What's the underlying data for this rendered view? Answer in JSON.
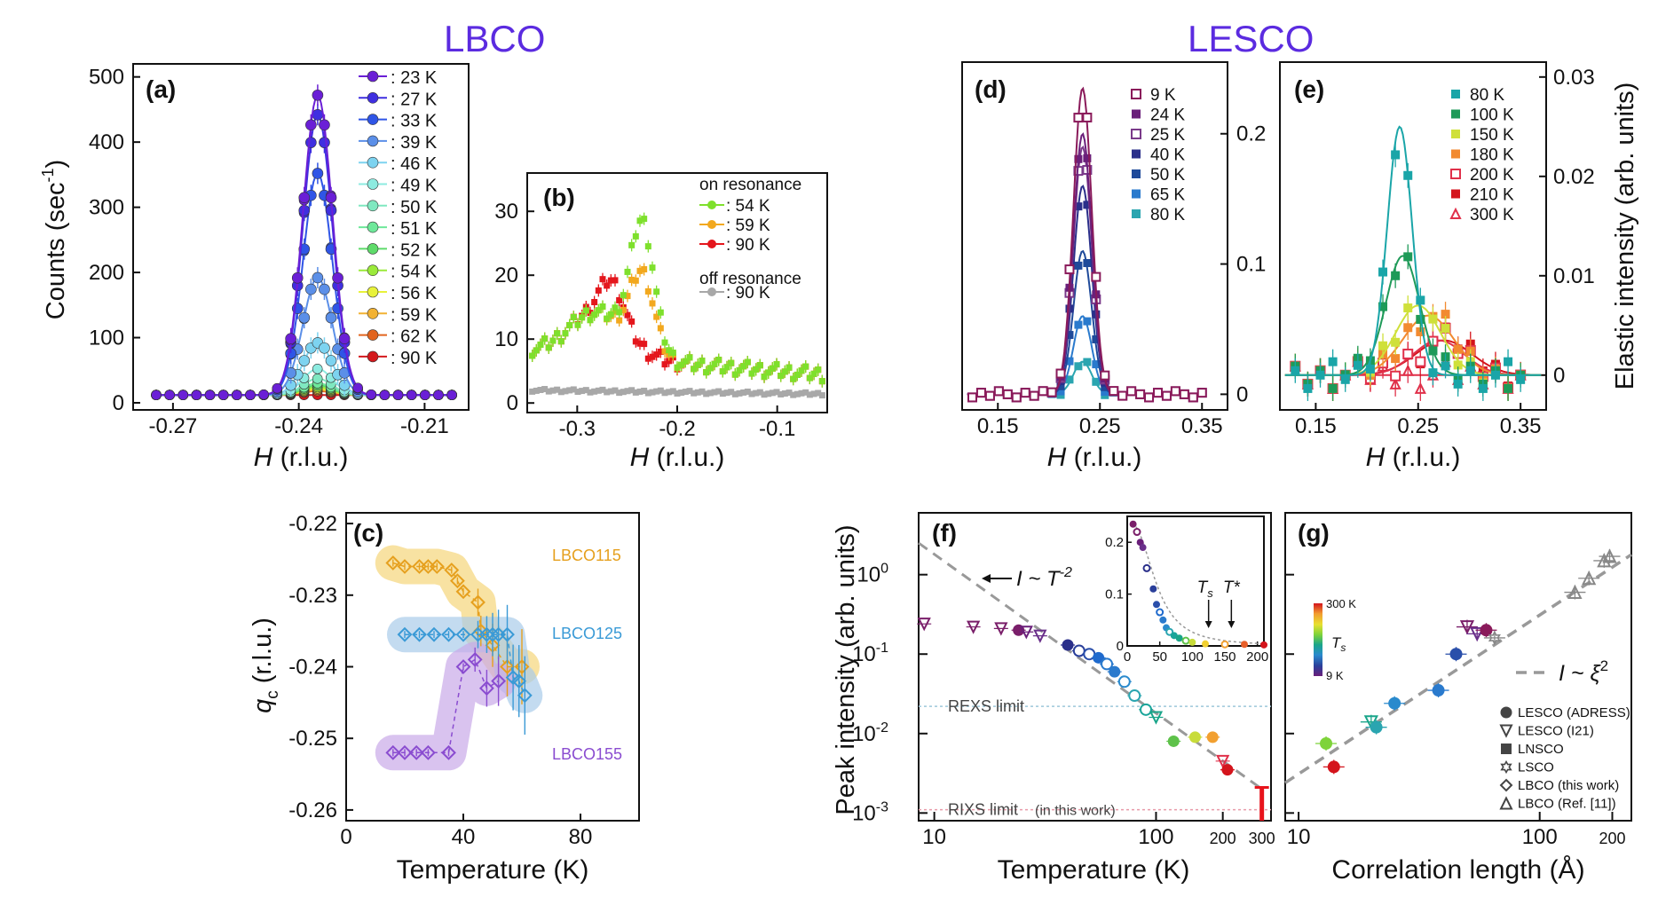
{
  "titles": {
    "lbco": "LBCO",
    "lesco": "LESCO"
  },
  "colors": {
    "title": "#5B2BE0",
    "axis": "#111111"
  },
  "charts": {
    "a": {
      "panel_label": "(a)",
      "ylabel": "Counts (sec",
      "ylabel_sup": "-1",
      "ylabel_tail": ")",
      "xlabel_italic": "H",
      "xlabel_rest": " (r.l.u.)",
      "xticks": [
        -0.27,
        -0.24,
        -0.21
      ],
      "xtick_labels": [
        "-0.27",
        "-0.24",
        "-0.21"
      ],
      "yticks": [
        0,
        100,
        200,
        300,
        400,
        500
      ],
      "ytick_labels": [
        "0",
        "100",
        "200",
        "300",
        "400",
        "500"
      ],
      "legend_prefix": ": ",
      "series": [
        {
          "name": "23 K",
          "color": "#6A1FD6",
          "peak": 460
        },
        {
          "name": "27 K",
          "color": "#3F2FE0",
          "peak": 430
        },
        {
          "name": "33 K",
          "color": "#2F55E6",
          "peak": 340
        },
        {
          "name": "39 K",
          "color": "#5B8FE8",
          "peak": 180
        },
        {
          "name": "46 K",
          "color": "#7DD3F0",
          "peak": 80
        },
        {
          "name": "49 K",
          "color": "#8DEBE0",
          "peak": 40
        },
        {
          "name": "50 K",
          "color": "#7FE8C0",
          "peak": 25
        },
        {
          "name": "51 K",
          "color": "#6EE89A",
          "peak": 18
        },
        {
          "name": "52 K",
          "color": "#5EDB6A",
          "peak": 15
        },
        {
          "name": "54 K",
          "color": "#9BEA3A",
          "peak": 12
        },
        {
          "name": "56 K",
          "color": "#E8F23A",
          "peak": 10
        },
        {
          "name": "59 K",
          "color": "#F2B233",
          "peak": 8
        },
        {
          "name": "62 K",
          "color": "#E2641E",
          "peak": 6
        },
        {
          "name": "90 K",
          "color": "#D4181C",
          "peak": 0
        }
      ]
    },
    "b": {
      "panel_label": "(b)",
      "xlabel_italic": "H",
      "xlabel_rest": " (r.l.u.)",
      "xticks": [
        -0.3,
        -0.2,
        -0.1
      ],
      "xtick_labels": [
        "-0.3",
        "-0.2",
        "-0.1"
      ],
      "yticks": [
        0,
        10,
        20,
        30
      ],
      "ytick_labels": [
        "0",
        "10",
        "20",
        "30"
      ],
      "on_resonance_label": "on resonance",
      "off_resonance_label": "off resonance",
      "legend_prefix": ": ",
      "series": [
        {
          "name": "54 K",
          "color": "#7EE02C",
          "center": -0.235,
          "amp": 20,
          "group": "on"
        },
        {
          "name": "59 K",
          "color": "#F2A81E",
          "center": -0.235,
          "amp": 12,
          "group": "on"
        },
        {
          "name": "90 K",
          "color": "#E4161C",
          "center": -0.265,
          "amp": 6,
          "group": "on"
        },
        {
          "name": "90 K",
          "color": "#A8A8A8",
          "center": -0.25,
          "amp": 0,
          "group": "off"
        }
      ]
    },
    "c": {
      "panel_label": "(c)",
      "ylabel_italic": "q",
      "ylabel_sub": "c",
      "ylabel_rest": " (r.l.u.)",
      "xlabel": "Temperature (K)",
      "xticks": [
        0,
        40,
        80
      ],
      "xtick_labels": [
        "0",
        "40",
        "80"
      ],
      "yticks": [
        -0.26,
        -0.25,
        -0.24,
        -0.23,
        -0.22
      ],
      "ytick_labels": [
        "-0.26",
        "-0.25",
        "-0.24",
        "-0.23",
        "-0.22"
      ],
      "series": [
        {
          "name": "LBCO115",
          "color": "#E6A01E",
          "band": "#F5D67A",
          "x": [
            16,
            20,
            25,
            28,
            31,
            36,
            38,
            40,
            45,
            46,
            50,
            55,
            60
          ],
          "y": [
            -0.2255,
            -0.226,
            -0.226,
            -0.226,
            -0.226,
            -0.2265,
            -0.228,
            -0.2295,
            -0.231,
            -0.235,
            -0.237,
            -0.24,
            -0.24
          ]
        },
        {
          "name": "LBCO125",
          "color": "#3A9AD6",
          "band": "#A9CCEA",
          "x": [
            20,
            25,
            30,
            35,
            40,
            45,
            48,
            50,
            52,
            55,
            57,
            59,
            61
          ],
          "y": [
            -0.2355,
            -0.2355,
            -0.2355,
            -0.2355,
            -0.2355,
            -0.2355,
            -0.2355,
            -0.2355,
            -0.2355,
            -0.2355,
            -0.2415,
            -0.242,
            -0.244
          ]
        },
        {
          "name": "LBCO155",
          "color": "#8A4CD0",
          "band": "#C9A9E8",
          "x": [
            16,
            20,
            24,
            28,
            35,
            40,
            44,
            48,
            52
          ],
          "y": [
            -0.252,
            -0.252,
            -0.252,
            -0.252,
            -0.252,
            -0.24,
            -0.239,
            -0.243,
            -0.242
          ]
        }
      ]
    },
    "d": {
      "panel_label": "(d)",
      "xlabel_italic": "H",
      "xlabel_rest": " (r.l.u.)",
      "xticks": [
        0.15,
        0.25,
        0.35
      ],
      "xtick_labels": [
        "0.15",
        "0.25",
        "0.35"
      ],
      "yticks": [
        0,
        0.1,
        0.2
      ],
      "ytick_labels": [
        "0",
        "0.1",
        "0.2"
      ],
      "series": [
        {
          "name": "9 K",
          "color": "#8A1A5A",
          "peak": 0.235,
          "filled": false
        },
        {
          "name": "24 K",
          "color": "#6A1F7A",
          "peak": 0.2,
          "filled": true
        },
        {
          "name": "25 K",
          "color": "#7A3A8A",
          "peak": 0.19,
          "filled": false
        },
        {
          "name": "40 K",
          "color": "#2A2F8A",
          "peak": 0.16,
          "filled": true
        },
        {
          "name": "50 K",
          "color": "#1F4A9A",
          "peak": 0.11,
          "filled": true
        },
        {
          "name": "65 K",
          "color": "#2A7ACD",
          "peak": 0.06,
          "filled": true
        },
        {
          "name": "80 K",
          "color": "#2AA5B0",
          "peak": 0.025,
          "filled": true
        }
      ]
    },
    "e": {
      "panel_label": "(e)",
      "ylabel": "Elastic intensity (arb. units)",
      "xlabel_italic": "H",
      "xlabel_rest": " (r.l.u.)",
      "xticks": [
        0.15,
        0.25,
        0.35
      ],
      "xtick_labels": [
        "0.15",
        "0.25",
        "0.35"
      ],
      "yticks": [
        0,
        0.01,
        0.02,
        0.03
      ],
      "ytick_labels": [
        "0",
        "0.01",
        "0.02",
        "0.03"
      ],
      "series": [
        {
          "name": "80 K",
          "color": "#1AA5A8",
          "center": 0.232,
          "amp": 0.025,
          "width": 0.022,
          "marker": "sq"
        },
        {
          "name": "100 K",
          "color": "#1E9A58",
          "center": 0.235,
          "amp": 0.012,
          "width": 0.03,
          "marker": "sq"
        },
        {
          "name": "150 K",
          "color": "#CFE03A",
          "center": 0.25,
          "amp": 0.007,
          "width": 0.04,
          "marker": "sq"
        },
        {
          "name": "180 K",
          "color": "#F28A30",
          "center": 0.26,
          "amp": 0.006,
          "width": 0.045,
          "marker": "sq"
        },
        {
          "name": "200 K",
          "color": "#E0304A",
          "center": 0.27,
          "amp": 0.0035,
          "width": 0.045,
          "marker": "sqo"
        },
        {
          "name": "210 K",
          "color": "#D4141C",
          "center": 0.275,
          "amp": 0.0035,
          "width": 0.05,
          "marker": "sq"
        },
        {
          "name": "300 K",
          "color": "#E0304A",
          "center": 0.27,
          "amp": 0.0,
          "width": 0.05,
          "marker": "tri"
        }
      ]
    },
    "f": {
      "panel_label": "(f)",
      "ylabel": "Peak intensity (arb. units)",
      "xlabel": "Temperature (K)",
      "xtick_labels": [
        "10",
        "100",
        "200",
        "300"
      ],
      "xticks": [
        10,
        100,
        200,
        300
      ],
      "ytick_base": "10",
      "ytick_exps": [
        "0",
        "-1",
        "-2",
        "-3"
      ],
      "yticks": [
        1,
        0.1,
        0.01,
        0.001
      ],
      "fit_label_pre": "I ~ T",
      "fit_label_exp": "-2",
      "rexs_limit": "REXS limit",
      "rixs_limit": "RIXS limit",
      "rixs_note": "(in this work)",
      "rexs_value": 0.022,
      "rixs_value": 0.0011,
      "inset": {
        "xticks": [
          0,
          50,
          100,
          150,
          200
        ],
        "xtick_labels": [
          "0",
          "50",
          "100",
          "150",
          "200"
        ],
        "yticks": [
          0,
          0.1,
          0.2
        ],
        "ytick_labels": [
          "0",
          "0.1",
          "0.2"
        ],
        "ts_label": "T",
        "ts_sub": "s",
        "tstar_label": "T*",
        "ts_value": 125,
        "tstar_value": 160
      },
      "points": [
        {
          "t": 9,
          "v": 0.24,
          "c": "#7A1F6A",
          "m": "tri"
        },
        {
          "t": 15,
          "v": 0.22,
          "c": "#7A1F6A",
          "m": "tri"
        },
        {
          "t": 20,
          "v": 0.21,
          "c": "#7A1F6A",
          "m": "tri"
        },
        {
          "t": 24,
          "v": 0.2,
          "c": "#7A1F6A",
          "m": "circ"
        },
        {
          "t": 26,
          "v": 0.19,
          "c": "#6A1F7A",
          "m": "tri"
        },
        {
          "t": 30,
          "v": 0.17,
          "c": "#6A2F8A",
          "m": "tri"
        },
        {
          "t": 40,
          "v": 0.13,
          "c": "#2A2F8A",
          "m": "circ"
        },
        {
          "t": 45,
          "v": 0.11,
          "c": "#2A3F9A",
          "m": "circo"
        },
        {
          "t": 50,
          "v": 0.1,
          "c": "#2A4FAA",
          "m": "circo"
        },
        {
          "t": 55,
          "v": 0.09,
          "c": "#1F6ACD",
          "m": "circ"
        },
        {
          "t": 60,
          "v": 0.075,
          "c": "#2A7ACD",
          "m": "circo"
        },
        {
          "t": 65,
          "v": 0.06,
          "c": "#2A7ACD",
          "m": "circ"
        },
        {
          "t": 72,
          "v": 0.045,
          "c": "#2A8ACD",
          "m": "circo"
        },
        {
          "t": 80,
          "v": 0.03,
          "c": "#2AA5B0",
          "m": "circo"
        },
        {
          "t": 90,
          "v": 0.02,
          "c": "#1AA59A",
          "m": "circo"
        },
        {
          "t": 100,
          "v": 0.016,
          "c": "#1AA58A",
          "m": "tri"
        },
        {
          "t": 120,
          "v": 0.008,
          "c": "#5EC24A",
          "m": "circ"
        },
        {
          "t": 150,
          "v": 0.009,
          "c": "#C8DC3A",
          "m": "circ"
        },
        {
          "t": 180,
          "v": 0.009,
          "c": "#F2A030",
          "m": "circ"
        },
        {
          "t": 200,
          "v": 0.0045,
          "c": "#E0304A",
          "m": "tri"
        },
        {
          "t": 210,
          "v": 0.0035,
          "c": "#D4141C",
          "m": "circ"
        },
        {
          "t": 300,
          "v": 0.0012,
          "c": "#E8141C",
          "m": "bar"
        }
      ],
      "inset_points": [
        {
          "t": 9,
          "v": 0.235
        },
        {
          "t": 15,
          "v": 0.22
        },
        {
          "t": 20,
          "v": 0.2
        },
        {
          "t": 24,
          "v": 0.19
        },
        {
          "t": 30,
          "v": 0.15
        },
        {
          "t": 40,
          "v": 0.11
        },
        {
          "t": 45,
          "v": 0.08
        },
        {
          "t": 50,
          "v": 0.065
        },
        {
          "t": 55,
          "v": 0.05
        },
        {
          "t": 60,
          "v": 0.035
        },
        {
          "t": 65,
          "v": 0.027
        },
        {
          "t": 72,
          "v": 0.02
        },
        {
          "t": 80,
          "v": 0.015
        },
        {
          "t": 90,
          "v": 0.01
        },
        {
          "t": 100,
          "v": 0.007
        },
        {
          "t": 120,
          "v": 0.004
        },
        {
          "t": 150,
          "v": 0.003
        },
        {
          "t": 180,
          "v": 0.003
        },
        {
          "t": 210,
          "v": 0.002
        }
      ]
    },
    "g": {
      "panel_label": "(g)",
      "xlabel": "Correlation length (Å)",
      "xtick_labels": [
        "10",
        "100",
        "200"
      ],
      "xticks": [
        10,
        100,
        200
      ],
      "fit_label_pre": "I ~ ",
      "fit_label_xi": "ξ",
      "fit_label_exp": "2",
      "colorbar_top": "300 K",
      "colorbar_bottom": "9 K",
      "colorbar_label": "T",
      "colorbar_sub": "s",
      "legend": [
        {
          "label": "LESCO (ADRESS)",
          "marker": "circ"
        },
        {
          "label": "LESCO (I21)",
          "marker": "tri-down"
        },
        {
          "label": "LNSCO",
          "marker": "sq"
        },
        {
          "label": "LSCO",
          "marker": "star"
        },
        {
          "label": "LBCO (this work)",
          "marker": "dia"
        },
        {
          "label": "LBCO (Ref. [11])",
          "marker": "tri"
        }
      ],
      "points": [
        {
          "xi": 13,
          "v": 0.0075,
          "c": "#7ED33A",
          "m": "circ"
        },
        {
          "xi": 14,
          "v": 0.0038,
          "c": "#D4141C",
          "m": "circ"
        },
        {
          "xi": 20,
          "v": 0.014,
          "c": "#1AA58A",
          "m": "tri"
        },
        {
          "xi": 21,
          "v": 0.012,
          "c": "#2AA5B0",
          "m": "circ"
        },
        {
          "xi": 25,
          "v": 0.024,
          "c": "#2A8ACD",
          "m": "circ"
        },
        {
          "xi": 38,
          "v": 0.035,
          "c": "#2A7ACD",
          "m": "circ"
        },
        {
          "xi": 45,
          "v": 0.1,
          "c": "#2A4FAA",
          "m": "circ"
        },
        {
          "xi": 50,
          "v": 0.22,
          "c": "#7A1F6A",
          "m": "tri"
        },
        {
          "xi": 55,
          "v": 0.18,
          "c": "#6A2F8A",
          "m": "tri"
        },
        {
          "xi": 60,
          "v": 0.2,
          "c": "#8A1A5A",
          "m": "circ"
        },
        {
          "xi": 65,
          "v": 0.16,
          "c": "#888888",
          "m": "star"
        },
        {
          "xi": 140,
          "v": 0.6,
          "c": "#888888",
          "m": "tri"
        },
        {
          "xi": 160,
          "v": 0.9,
          "c": "#888888",
          "m": "tri"
        },
        {
          "xi": 185,
          "v": 1.5,
          "c": "#888888",
          "m": "tri"
        },
        {
          "xi": 195,
          "v": 1.7,
          "c": "#888888",
          "m": "tri"
        }
      ]
    }
  }
}
